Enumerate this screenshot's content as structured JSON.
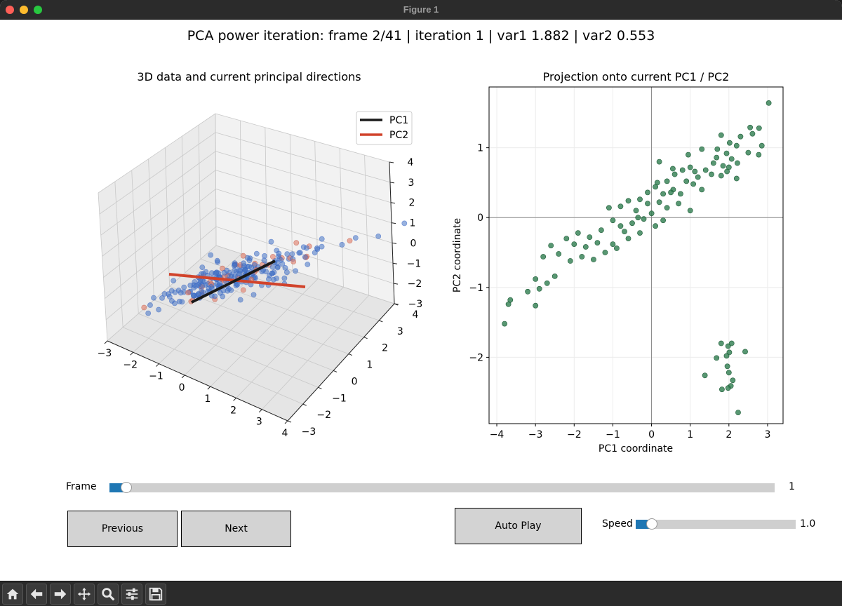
{
  "window": {
    "title": "Figure 1"
  },
  "figure": {
    "suptitle": "PCA power iteration: frame 2/41 | iteration 1 | var1 1.882 | var2 0.553"
  },
  "left_axes": {
    "title": "3D data and current principal directions",
    "legend": [
      "PC1",
      "PC2"
    ],
    "x_ticks": [
      "−3",
      "−2",
      "−1",
      "0",
      "1",
      "2",
      "3",
      "4"
    ],
    "y_ticks": [
      "−3",
      "−2",
      "−1",
      "0",
      "1",
      "2",
      "3",
      "4"
    ],
    "z_ticks": [
      "−3",
      "−2",
      "−1",
      "0",
      "1",
      "2",
      "3",
      "4"
    ]
  },
  "right_axes": {
    "title": "Projection onto current PC1 / PC2",
    "xlabel": "PC1 coordinate",
    "ylabel": "PC2 coordinate"
  },
  "chart_data": [
    {
      "type": "scatter",
      "title": "3D data and current principal directions",
      "dimensions": 3,
      "xlim": [
        -3,
        4
      ],
      "ylim": [
        -3,
        4
      ],
      "zlim": [
        -3,
        4
      ],
      "series": [
        {
          "name": "PC1",
          "kind": "line",
          "color": "#1a1a1a"
        },
        {
          "name": "PC2",
          "kind": "line",
          "color": "#d1432b"
        }
      ],
      "point_color": "#4472c4",
      "legend_position": "top-right",
      "grid": true
    },
    {
      "type": "scatter",
      "title": "Projection onto current PC1 / PC2",
      "xlabel": "PC1 coordinate",
      "ylabel": "PC2 coordinate",
      "xlim": [
        -4.2,
        3.4
      ],
      "ylim": [
        -2.95,
        1.87
      ],
      "xticks": [
        -4,
        -3,
        -2,
        -1,
        0,
        1,
        2,
        3
      ],
      "yticks": [
        -2,
        -1,
        0,
        1
      ],
      "grid": true,
      "point_color": "#2e7d4f",
      "points": [
        [
          3.03,
          1.64
        ],
        [
          2.55,
          1.29
        ],
        [
          2.78,
          1.28
        ],
        [
          2.61,
          1.2
        ],
        [
          2.3,
          1.16
        ],
        [
          1.8,
          1.18
        ],
        [
          2.02,
          1.07
        ],
        [
          2.2,
          1.03
        ],
        [
          2.85,
          1.03
        ],
        [
          1.3,
          0.98
        ],
        [
          2.5,
          0.93
        ],
        [
          2.77,
          0.9
        ],
        [
          1.94,
          0.92
        ],
        [
          1.68,
          0.86
        ],
        [
          2.07,
          0.84
        ],
        [
          2.22,
          0.78
        ],
        [
          1.85,
          0.74
        ],
        [
          1.6,
          0.78
        ],
        [
          2.0,
          0.72
        ],
        [
          1.4,
          0.68
        ],
        [
          1.12,
          0.66
        ],
        [
          1.8,
          0.6
        ],
        [
          2.2,
          0.56
        ],
        [
          1.0,
          0.72
        ],
        [
          0.8,
          0.68
        ],
        [
          1.2,
          0.58
        ],
        [
          0.6,
          0.62
        ],
        [
          0.4,
          0.52
        ],
        [
          0.9,
          0.52
        ],
        [
          1.08,
          0.48
        ],
        [
          0.56,
          0.4
        ],
        [
          0.3,
          0.34
        ],
        [
          0.1,
          0.44
        ],
        [
          -0.1,
          0.36
        ],
        [
          0.2,
          0.22
        ],
        [
          0.7,
          0.2
        ],
        [
          1.0,
          0.1
        ],
        [
          0.4,
          0.14
        ],
        [
          -0.3,
          0.26
        ],
        [
          -0.6,
          0.24
        ],
        [
          -0.8,
          0.16
        ],
        [
          -1.1,
          0.14
        ],
        [
          -0.4,
          0.1
        ],
        [
          0.0,
          0.06
        ],
        [
          0.3,
          -0.04
        ],
        [
          -0.2,
          -0.02
        ],
        [
          -0.5,
          -0.08
        ],
        [
          -0.8,
          -0.12
        ],
        [
          -1.0,
          -0.04
        ],
        [
          -1.3,
          -0.18
        ],
        [
          -1.6,
          -0.28
        ],
        [
          -1.9,
          -0.22
        ],
        [
          -2.2,
          -0.3
        ],
        [
          -2.0,
          -0.38
        ],
        [
          -1.7,
          -0.42
        ],
        [
          -1.4,
          -0.36
        ],
        [
          -1.2,
          -0.5
        ],
        [
          -0.9,
          -0.44
        ],
        [
          -0.6,
          -0.3
        ],
        [
          -0.3,
          -0.22
        ],
        [
          0.1,
          -0.12
        ],
        [
          -1.5,
          -0.6
        ],
        [
          -1.8,
          -0.56
        ],
        [
          -2.1,
          -0.62
        ],
        [
          -2.4,
          -0.52
        ],
        [
          -2.6,
          -0.4
        ],
        [
          -2.8,
          -0.56
        ],
        [
          -2.5,
          -0.84
        ],
        [
          -2.7,
          -0.94
        ],
        [
          -3.0,
          -0.88
        ],
        [
          -3.2,
          -1.06
        ],
        [
          -2.9,
          -1.02
        ],
        [
          -3.0,
          -1.26
        ],
        [
          -3.8,
          -1.52
        ],
        [
          -3.7,
          -1.24
        ],
        [
          -3.65,
          -1.18
        ],
        [
          -1.0,
          -0.38
        ],
        [
          -0.7,
          -0.2
        ],
        [
          0.5,
          0.36
        ],
        [
          0.75,
          0.34
        ],
        [
          1.3,
          0.4
        ],
        [
          1.55,
          0.62
        ],
        [
          0.2,
          0.8
        ],
        [
          0.95,
          0.9
        ],
        [
          1.7,
          0.98
        ],
        [
          0.55,
          0.7
        ],
        [
          -0.1,
          0.2
        ],
        [
          -0.35,
          0.0
        ],
        [
          0.15,
          0.5
        ],
        [
          1.95,
          0.66
        ],
        [
          1.8,
          -1.8
        ],
        [
          1.98,
          -1.84
        ],
        [
          2.07,
          -1.8
        ],
        [
          2.01,
          -1.93
        ],
        [
          1.94,
          -1.98
        ],
        [
          2.42,
          -1.92
        ],
        [
          1.68,
          -2.01
        ],
        [
          1.96,
          -2.13
        ],
        [
          2.0,
          -2.22
        ],
        [
          1.38,
          -2.26
        ],
        [
          2.1,
          -2.33
        ],
        [
          2.05,
          -2.41
        ],
        [
          1.98,
          -2.44
        ],
        [
          1.82,
          -2.46
        ],
        [
          2.24,
          -2.79
        ]
      ]
    }
  ],
  "controls": {
    "frame": {
      "label": "Frame",
      "value": "1",
      "fraction": 0.025
    },
    "speed": {
      "label": "Speed",
      "value": "1.0",
      "fraction": 0.1
    },
    "previous_label": "Previous",
    "next_label": "Next",
    "autoplay_label": "Auto Play"
  },
  "toolbar": {
    "icons": [
      "home-icon",
      "back-arrow-icon",
      "forward-arrow-icon",
      "pan-icon",
      "zoom-icon",
      "configure-icon",
      "save-icon"
    ]
  }
}
